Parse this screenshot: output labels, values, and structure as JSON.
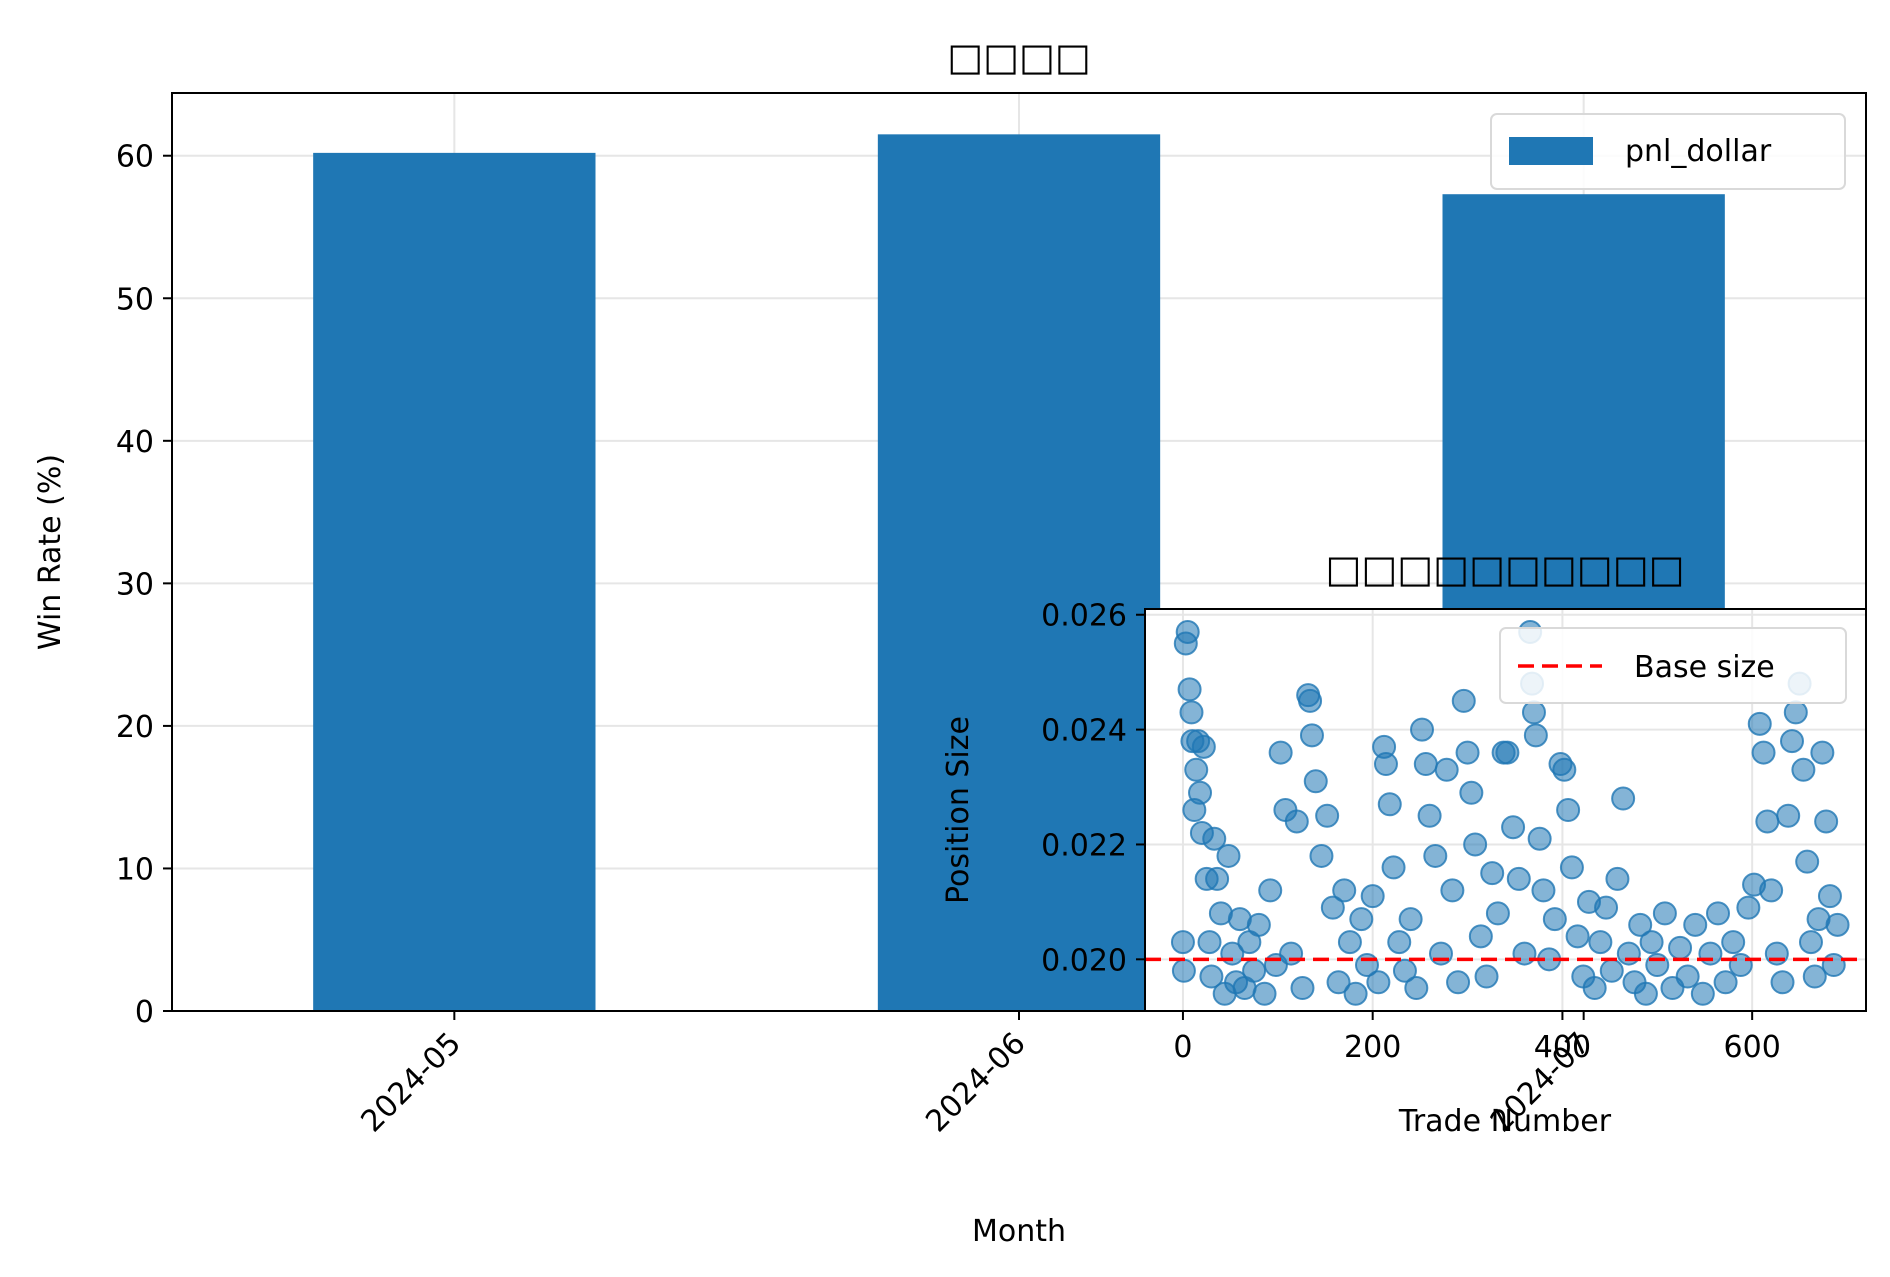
{
  "colors": {
    "bar": "#1f77b4",
    "scatter": "#1f77b4",
    "base_line": "#ff0000",
    "grid": "#e6e6e6",
    "axes": "#000000"
  },
  "chart_data": [
    {
      "type": "bar",
      "title": "□□□□",
      "xlabel": "Month",
      "ylabel": "Win Rate (%)",
      "categories": [
        "2024-05",
        "2024-06",
        "2024-07"
      ],
      "series": [
        {
          "name": "pnl_dollar",
          "values": [
            60.2,
            61.5,
            57.3
          ]
        }
      ],
      "ylim": [
        0,
        64.4
      ],
      "yticks": [
        0,
        10,
        20,
        30,
        40,
        50,
        60
      ],
      "x_tick_rotation_deg": 45,
      "grid": true,
      "legend": "top-right"
    },
    {
      "type": "scatter",
      "title": "□□□□□□□□□□",
      "xlabel": "Trade Number",
      "ylabel": "Position Size",
      "xlim": [
        -40,
        720
      ],
      "ylim": [
        0.0191,
        0.0261
      ],
      "xticks": [
        0,
        200,
        400,
        600
      ],
      "yticks": [
        0.02,
        0.022,
        0.024,
        0.026
      ],
      "ytick_labels": [
        "0.020",
        "0.022",
        "0.024",
        "0.026"
      ],
      "grid": true,
      "legend": "top-right",
      "reference_line": {
        "name": "Base size",
        "y": 0.02,
        "style": "dashed"
      },
      "points": [
        [
          0,
          0.0203
        ],
        [
          1,
          0.0198
        ],
        [
          3,
          0.0255
        ],
        [
          5,
          0.0257
        ],
        [
          7,
          0.0247
        ],
        [
          9,
          0.0243
        ],
        [
          10,
          0.0238
        ],
        [
          12,
          0.0226
        ],
        [
          14,
          0.0233
        ],
        [
          16,
          0.0238
        ],
        [
          18,
          0.0229
        ],
        [
          20,
          0.0222
        ],
        [
          22,
          0.0237
        ],
        [
          25,
          0.0214
        ],
        [
          28,
          0.0203
        ],
        [
          30,
          0.0197
        ],
        [
          33,
          0.0221
        ],
        [
          36,
          0.0214
        ],
        [
          40,
          0.0208
        ],
        [
          44,
          0.0194
        ],
        [
          48,
          0.0218
        ],
        [
          52,
          0.0201
        ],
        [
          56,
          0.0196
        ],
        [
          60,
          0.0207
        ],
        [
          65,
          0.0195
        ],
        [
          70,
          0.0203
        ],
        [
          75,
          0.0198
        ],
        [
          80,
          0.0206
        ],
        [
          86,
          0.0194
        ],
        [
          92,
          0.0212
        ],
        [
          98,
          0.0199
        ],
        [
          103,
          0.0236
        ],
        [
          108,
          0.0226
        ],
        [
          114,
          0.0201
        ],
        [
          120,
          0.0224
        ],
        [
          126,
          0.0195
        ],
        [
          132,
          0.0246
        ],
        [
          134,
          0.0245
        ],
        [
          136,
          0.0239
        ],
        [
          140,
          0.0231
        ],
        [
          146,
          0.0218
        ],
        [
          152,
          0.0225
        ],
        [
          158,
          0.0209
        ],
        [
          164,
          0.0196
        ],
        [
          170,
          0.0212
        ],
        [
          176,
          0.0203
        ],
        [
          182,
          0.0194
        ],
        [
          188,
          0.0207
        ],
        [
          194,
          0.0199
        ],
        [
          200,
          0.0211
        ],
        [
          206,
          0.0196
        ],
        [
          212,
          0.0237
        ],
        [
          214,
          0.0234
        ],
        [
          218,
          0.0227
        ],
        [
          222,
          0.0216
        ],
        [
          228,
          0.0203
        ],
        [
          234,
          0.0198
        ],
        [
          240,
          0.0207
        ],
        [
          246,
          0.0195
        ],
        [
          252,
          0.024
        ],
        [
          256,
          0.0234
        ],
        [
          260,
          0.0225
        ],
        [
          266,
          0.0218
        ],
        [
          272,
          0.0201
        ],
        [
          278,
          0.0233
        ],
        [
          284,
          0.0212
        ],
        [
          290,
          0.0196
        ],
        [
          296,
          0.0245
        ],
        [
          300,
          0.0236
        ],
        [
          304,
          0.0229
        ],
        [
          308,
          0.022
        ],
        [
          314,
          0.0204
        ],
        [
          320,
          0.0197
        ],
        [
          326,
          0.0215
        ],
        [
          332,
          0.0208
        ],
        [
          338,
          0.0236
        ],
        [
          342,
          0.0236
        ],
        [
          348,
          0.0223
        ],
        [
          354,
          0.0214
        ],
        [
          360,
          0.0201
        ],
        [
          366,
          0.0257
        ],
        [
          368,
          0.0248
        ],
        [
          370,
          0.0243
        ],
        [
          372,
          0.0239
        ],
        [
          376,
          0.0221
        ],
        [
          380,
          0.0212
        ],
        [
          386,
          0.02
        ],
        [
          392,
          0.0207
        ],
        [
          398,
          0.0234
        ],
        [
          402,
          0.0233
        ],
        [
          406,
          0.0226
        ],
        [
          410,
          0.0216
        ],
        [
          416,
          0.0204
        ],
        [
          422,
          0.0197
        ],
        [
          428,
          0.021
        ],
        [
          434,
          0.0195
        ],
        [
          440,
          0.0203
        ],
        [
          446,
          0.0209
        ],
        [
          452,
          0.0198
        ],
        [
          458,
          0.0214
        ],
        [
          464,
          0.0228
        ],
        [
          470,
          0.0201
        ],
        [
          476,
          0.0196
        ],
        [
          482,
          0.0206
        ],
        [
          488,
          0.0194
        ],
        [
          494,
          0.0203
        ],
        [
          500,
          0.0199
        ],
        [
          508,
          0.0208
        ],
        [
          516,
          0.0195
        ],
        [
          524,
          0.0202
        ],
        [
          532,
          0.0197
        ],
        [
          540,
          0.0206
        ],
        [
          548,
          0.0194
        ],
        [
          556,
          0.0201
        ],
        [
          564,
          0.0208
        ],
        [
          572,
          0.0196
        ],
        [
          580,
          0.0203
        ],
        [
          588,
          0.0199
        ],
        [
          596,
          0.0209
        ],
        [
          602,
          0.0213
        ],
        [
          608,
          0.0241
        ],
        [
          612,
          0.0236
        ],
        [
          616,
          0.0224
        ],
        [
          620,
          0.0212
        ],
        [
          626,
          0.0201
        ],
        [
          632,
          0.0196
        ],
        [
          638,
          0.0225
        ],
        [
          642,
          0.0238
        ],
        [
          646,
          0.0243
        ],
        [
          650,
          0.0248
        ],
        [
          654,
          0.0233
        ],
        [
          658,
          0.0217
        ],
        [
          662,
          0.0203
        ],
        [
          666,
          0.0197
        ],
        [
          670,
          0.0207
        ],
        [
          674,
          0.0236
        ],
        [
          678,
          0.0224
        ],
        [
          682,
          0.0211
        ],
        [
          686,
          0.0199
        ],
        [
          690,
          0.0206
        ]
      ]
    }
  ]
}
